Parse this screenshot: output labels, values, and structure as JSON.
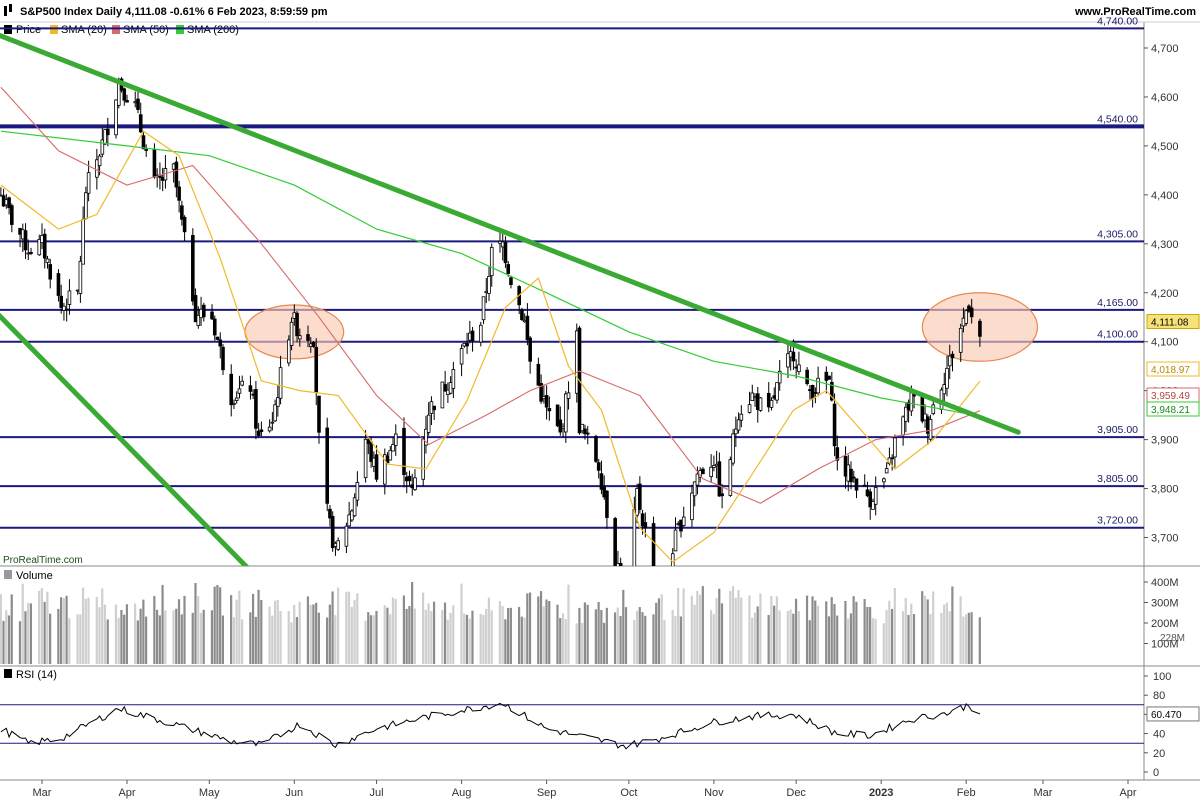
{
  "header": {
    "title": "S&P500 Index Daily 4,111.08 -0.61% 6 Feb 2023, 8:59:59 pm",
    "site": "www.ProRealTime.com"
  },
  "legend": {
    "price": "Price",
    "sma20": "SMA (20)",
    "sma50": "SMA (50)",
    "sma200": "SMA (200)",
    "volume": "Volume",
    "rsi": "RSI (14)",
    "watermark": "ProRealTime.com"
  },
  "colors": {
    "sma20": "#f2b92a",
    "sma50": "#d86a6a",
    "sma200": "#33cc33",
    "trendline": "#3aaa35",
    "level": "#1a1a80",
    "circle_fill": "#f9c9b2",
    "circle_stroke": "#e58a4f"
  },
  "chart_data": [
    {
      "type": "candlestick",
      "title": "S&P500 Index Daily 4,111.08 -0.61% 6 Feb 2023, 8:59:59 pm",
      "ylim": [
        3650,
        4750
      ],
      "y_ticks": [
        "3,700",
        "3,800",
        "3,900",
        "4,000",
        "4,100",
        "4,200",
        "4,300",
        "4,400",
        "4,500",
        "4,600",
        "4,700"
      ],
      "x_months": [
        "Mar",
        "Apr",
        "May",
        "Jun",
        "Jul",
        "Aug",
        "Sep",
        "Oct",
        "Nov",
        "Dec",
        "2023",
        "Feb",
        "Mar",
        "Apr"
      ],
      "horizontal_levels": [
        {
          "value": 4740,
          "label": "4,740.00"
        },
        {
          "value": 4540,
          "label": "4,540.00"
        },
        {
          "value": 4305,
          "label": "4,305.00"
        },
        {
          "value": 4165,
          "label": "4,165.00"
        },
        {
          "value": 4100,
          "label": "4,100.00"
        },
        {
          "value": 3905,
          "label": "3,905.00"
        },
        {
          "value": 3805,
          "label": "3,805.00"
        },
        {
          "value": 3720,
          "label": "3,720.00"
        }
      ],
      "last_values": {
        "price": "4,111.08",
        "sma20": "4,018.97",
        "sma50": "3,959.49",
        "sma200": "3,948.21"
      },
      "close_path": [
        [
          "2022-02-14",
          4400
        ],
        [
          "2022-02-18",
          4350
        ],
        [
          "2022-02-24",
          4290
        ],
        [
          "2022-03-01",
          4300
        ],
        [
          "2022-03-08",
          4170
        ],
        [
          "2022-03-14",
          4200
        ],
        [
          "2022-03-17",
          4410
        ],
        [
          "2022-03-24",
          4520
        ],
        [
          "2022-03-29",
          4630
        ],
        [
          "2022-04-04",
          4580
        ],
        [
          "2022-04-11",
          4420
        ],
        [
          "2022-04-18",
          4450
        ],
        [
          "2022-04-26",
          4160
        ],
        [
          "2022-05-02",
          4150
        ],
        [
          "2022-05-09",
          3990
        ],
        [
          "2022-05-16",
          4010
        ],
        [
          "2022-05-19",
          3900
        ],
        [
          "2022-05-24",
          3940
        ],
        [
          "2022-05-31",
          4150
        ],
        [
          "2022-06-03",
          4120
        ],
        [
          "2022-06-08",
          4110
        ],
        [
          "2022-06-10",
          3900
        ],
        [
          "2022-06-13",
          3750
        ],
        [
          "2022-06-16",
          3670
        ],
        [
          "2022-06-22",
          3760
        ],
        [
          "2022-06-27",
          3900
        ],
        [
          "2022-07-01",
          3830
        ],
        [
          "2022-07-08",
          3900
        ],
        [
          "2022-07-14",
          3790
        ],
        [
          "2022-07-20",
          3960
        ],
        [
          "2022-07-27",
          4020
        ],
        [
          "2022-08-02",
          4090
        ],
        [
          "2022-08-08",
          4140
        ],
        [
          "2022-08-12",
          4280
        ],
        [
          "2022-08-16",
          4300
        ],
        [
          "2022-08-19",
          4230
        ],
        [
          "2022-08-24",
          4140
        ],
        [
          "2022-08-26",
          4060
        ],
        [
          "2022-09-01",
          3960
        ],
        [
          "2022-09-06",
          3910
        ],
        [
          "2022-09-12",
          4110
        ],
        [
          "2022-09-13",
          3930
        ],
        [
          "2022-09-20",
          3850
        ],
        [
          "2022-09-26",
          3660
        ],
        [
          "2022-09-30",
          3585
        ],
        [
          "2022-10-04",
          3790
        ],
        [
          "2022-10-12",
          3580
        ],
        [
          "2022-10-17",
          3680
        ],
        [
          "2022-10-21",
          3750
        ],
        [
          "2022-10-26",
          3830
        ],
        [
          "2022-11-01",
          3860
        ],
        [
          "2022-11-04",
          3770
        ],
        [
          "2022-11-10",
          3960
        ],
        [
          "2022-11-15",
          3990
        ],
        [
          "2022-11-21",
          3950
        ],
        [
          "2022-11-25",
          4025
        ],
        [
          "2022-11-30",
          4080
        ],
        [
          "2022-12-05",
          3998
        ],
        [
          "2022-12-13",
          4020
        ],
        [
          "2022-12-16",
          3850
        ],
        [
          "2022-12-22",
          3820
        ],
        [
          "2022-12-28",
          3780
        ],
        [
          "2023-01-03",
          3825
        ],
        [
          "2023-01-06",
          3895
        ],
        [
          "2023-01-12",
          3985
        ],
        [
          "2023-01-18",
          3930
        ],
        [
          "2023-01-20",
          3970
        ],
        [
          "2023-01-26",
          4060
        ],
        [
          "2023-02-02",
          4180
        ],
        [
          "2023-02-06",
          4111
        ]
      ],
      "sma20_path": [
        [
          "2022-02-14",
          4420
        ],
        [
          "2022-03-07",
          4330
        ],
        [
          "2022-03-21",
          4360
        ],
        [
          "2022-04-07",
          4530
        ],
        [
          "2022-04-20",
          4480
        ],
        [
          "2022-05-05",
          4270
        ],
        [
          "2022-05-20",
          4020
        ],
        [
          "2022-06-03",
          4000
        ],
        [
          "2022-06-17",
          3990
        ],
        [
          "2022-07-05",
          3850
        ],
        [
          "2022-07-19",
          3840
        ],
        [
          "2022-08-03",
          3980
        ],
        [
          "2022-08-17",
          4170
        ],
        [
          "2022-08-29",
          4230
        ],
        [
          "2022-09-09",
          4050
        ],
        [
          "2022-09-21",
          3960
        ],
        [
          "2022-10-05",
          3720
        ],
        [
          "2022-10-17",
          3650
        ],
        [
          "2022-11-01",
          3710
        ],
        [
          "2022-11-15",
          3830
        ],
        [
          "2022-11-30",
          3960
        ],
        [
          "2022-12-12",
          4000
        ],
        [
          "2022-12-23",
          3930
        ],
        [
          "2023-01-06",
          3840
        ],
        [
          "2023-01-20",
          3900
        ],
        [
          "2023-02-06",
          4019
        ]
      ],
      "sma50_path": [
        [
          "2022-02-14",
          4620
        ],
        [
          "2022-03-07",
          4490
        ],
        [
          "2022-04-01",
          4420
        ],
        [
          "2022-04-25",
          4460
        ],
        [
          "2022-05-20",
          4300
        ],
        [
          "2022-06-10",
          4150
        ],
        [
          "2022-07-01",
          3990
        ],
        [
          "2022-07-20",
          3890
        ],
        [
          "2022-08-10",
          3950
        ],
        [
          "2022-08-26",
          4000
        ],
        [
          "2022-09-13",
          4040
        ],
        [
          "2022-10-05",
          3990
        ],
        [
          "2022-10-28",
          3820
        ],
        [
          "2022-11-18",
          3770
        ],
        [
          "2022-12-09",
          3840
        ],
        [
          "2022-12-30",
          3900
        ],
        [
          "2023-01-20",
          3920
        ],
        [
          "2023-02-06",
          3959
        ]
      ],
      "sma200_path": [
        [
          "2022-02-14",
          4530
        ],
        [
          "2022-04-01",
          4500
        ],
        [
          "2022-05-01",
          4480
        ],
        [
          "2022-06-01",
          4420
        ],
        [
          "2022-07-01",
          4330
        ],
        [
          "2022-08-01",
          4280
        ],
        [
          "2022-09-01",
          4200
        ],
        [
          "2022-10-01",
          4120
        ],
        [
          "2022-11-01",
          4060
        ],
        [
          "2022-12-01",
          4030
        ],
        [
          "2023-01-01",
          3985
        ],
        [
          "2023-02-06",
          3948
        ]
      ],
      "trendlines": [
        {
          "start": [
            "2022-02-07",
            4740
          ],
          "end": [
            "2023-02-20",
            3915
          ]
        },
        {
          "start": [
            "2022-02-07",
            4190
          ],
          "end": [
            "2022-06-24",
            3410
          ]
        }
      ],
      "highlight_zones": [
        {
          "center": [
            "2022-06-01",
            4120
          ],
          "x_halfspan_days": 18,
          "y_halfspan": 55
        },
        {
          "center": [
            "2023-02-06",
            4130
          ],
          "x_halfspan_days": 21,
          "y_halfspan": 70
        }
      ]
    },
    {
      "type": "bar",
      "title": "Volume",
      "y_ticks": [
        "100M",
        "200M",
        "300M",
        "400M"
      ],
      "last_value": "228M",
      "ylim": [
        0,
        430
      ],
      "unit": "M",
      "weekly_avg_M": [
        280,
        260,
        310,
        290,
        300,
        270,
        250,
        260,
        280,
        300,
        320,
        310,
        290,
        300,
        280,
        260,
        310,
        300,
        290,
        270,
        300,
        290,
        280,
        260,
        250,
        260,
        270,
        280,
        300,
        270,
        260,
        250,
        240,
        260,
        280,
        300,
        290,
        310,
        320,
        300,
        290,
        280,
        270,
        300,
        290,
        280,
        260,
        270,
        300,
        310,
        290,
        280
      ]
    },
    {
      "type": "line",
      "title": "RSI (14)",
      "ylim": [
        0,
        100
      ],
      "y_ticks": [
        "0",
        "20",
        "40",
        "60",
        "80",
        "100"
      ],
      "levels": [
        30,
        70
      ],
      "last_value": "60.470",
      "path": [
        [
          "2022-02-14",
          45
        ],
        [
          "2022-02-24",
          30
        ],
        [
          "2022-03-08",
          35
        ],
        [
          "2022-03-29",
          66
        ],
        [
          "2022-04-18",
          50
        ],
        [
          "2022-05-09",
          32
        ],
        [
          "2022-05-20",
          28
        ],
        [
          "2022-06-03",
          50
        ],
        [
          "2022-06-16",
          28
        ],
        [
          "2022-07-01",
          45
        ],
        [
          "2022-07-20",
          58
        ],
        [
          "2022-08-16",
          72
        ],
        [
          "2022-09-01",
          45
        ],
        [
          "2022-09-30",
          27
        ],
        [
          "2022-10-12",
          35
        ],
        [
          "2022-11-01",
          52
        ],
        [
          "2022-11-15",
          58
        ],
        [
          "2022-11-30",
          60
        ],
        [
          "2022-12-16",
          40
        ],
        [
          "2022-12-28",
          38
        ],
        [
          "2023-01-12",
          55
        ],
        [
          "2023-01-26",
          62
        ],
        [
          "2023-02-02",
          70
        ],
        [
          "2023-02-06",
          60
        ]
      ]
    }
  ]
}
